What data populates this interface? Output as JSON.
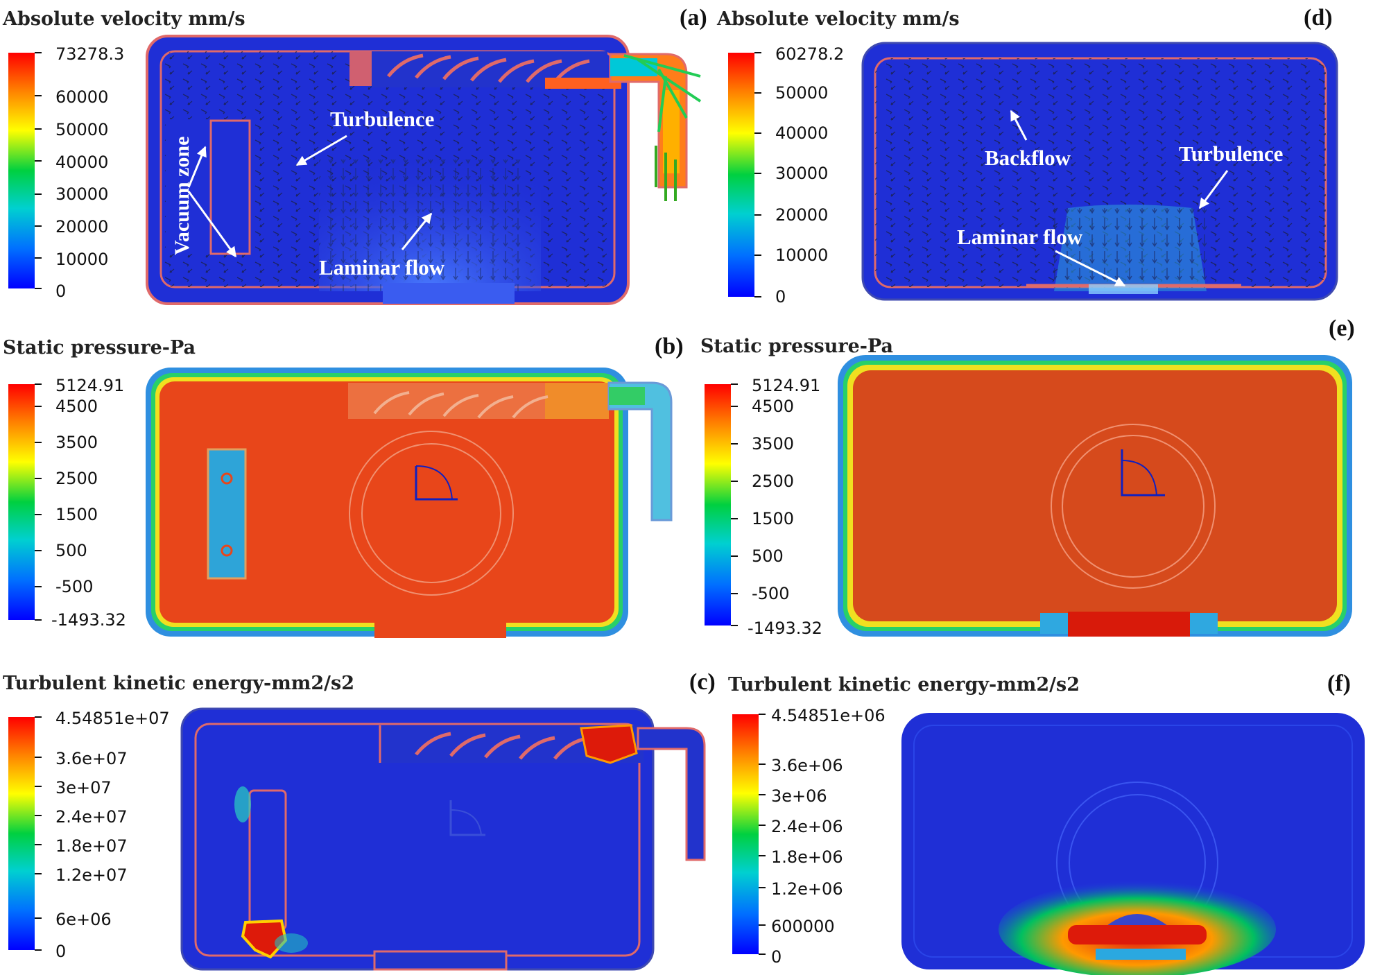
{
  "figure": {
    "panels": [
      {
        "id": "a",
        "label": "(a)",
        "title": "Absolute velocity mm/s",
        "quantity": "velocity",
        "ticks": [
          "73278.3",
          "60000",
          "50000",
          "40000",
          "30000",
          "20000",
          "10000",
          "0"
        ],
        "annotations": [
          "Vacuum zone",
          "Turbulence",
          "Laminar flow"
        ]
      },
      {
        "id": "d",
        "label": "(d)",
        "title": "Absolute velocity mm/s",
        "quantity": "velocity",
        "ticks": [
          "60278.2",
          "50000",
          "40000",
          "30000",
          "20000",
          "10000",
          "0"
        ],
        "annotations": [
          "Backflow",
          "Turbulence",
          "Laminar flow"
        ]
      },
      {
        "id": "b",
        "label": "(b)",
        "title": "Static pressure-Pa",
        "quantity": "pressure",
        "ticks": [
          "5124.91",
          "4500",
          "3500",
          "2500",
          "1500",
          "500",
          "-500",
          "-1493.32"
        ],
        "annotations": []
      },
      {
        "id": "e",
        "label": "(e)",
        "title": "Static pressure-Pa",
        "quantity": "pressure",
        "ticks": [
          "5124.91",
          "4500",
          "3500",
          "2500",
          "1500",
          "500",
          "-500",
          "-1493.32"
        ],
        "annotations": []
      },
      {
        "id": "c",
        "label": "(c)",
        "title": "Turbulent kinetic energy-mm2/s2",
        "quantity": "tke",
        "ticks": [
          "4.54851e+07",
          "3.6e+07",
          "3e+07",
          "2.4e+07",
          "1.8e+07",
          "1.2e+07",
          "6e+06",
          "0"
        ],
        "annotations": []
      },
      {
        "id": "f",
        "label": "(f)",
        "title": "Turbulent kinetic energy-mm2/s2",
        "quantity": "tke",
        "ticks": [
          "4.54851e+06",
          "3.6e+06",
          "3e+06",
          "2.4e+06",
          "1.8e+06",
          "1.2e+06",
          "600000",
          "0"
        ],
        "annotations": []
      }
    ],
    "colors": {
      "rainbow": [
        "#ff0000",
        "#ff8000",
        "#ffff00",
        "#00cc33",
        "#00cccc",
        "#0060ff",
        "#0000ff"
      ],
      "field_blue": "#1f2fd6",
      "field_red": "#e8461a",
      "wall": "#e06a6a"
    }
  }
}
